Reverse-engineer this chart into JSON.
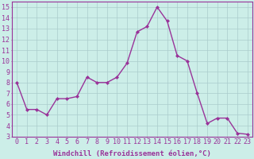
{
  "x": [
    0,
    1,
    2,
    3,
    4,
    5,
    6,
    7,
    8,
    9,
    10,
    11,
    12,
    13,
    14,
    15,
    16,
    17,
    18,
    19,
    20,
    21,
    22,
    23
  ],
  "y": [
    8,
    5.5,
    5.5,
    5.0,
    6.5,
    6.5,
    6.7,
    8.5,
    8.0,
    8.0,
    8.5,
    9.8,
    12.7,
    13.2,
    15.0,
    13.7,
    10.5,
    10.0,
    7.0,
    4.2,
    4.7,
    4.7,
    3.3,
    3.2
  ],
  "line_color": "#993399",
  "marker": "D",
  "marker_size": 2,
  "line_width": 1.0,
  "bg_color": "#cceee8",
  "grid_color": "#aacccc",
  "xlabel": "Windchill (Refroidissement éolien,°C)",
  "xlabel_color": "#993399",
  "tick_color": "#993399",
  "xlim": [
    -0.5,
    23.5
  ],
  "ylim": [
    3,
    15.5
  ],
  "yticks": [
    3,
    4,
    5,
    6,
    7,
    8,
    9,
    10,
    11,
    12,
    13,
    14,
    15
  ],
  "xticks": [
    0,
    1,
    2,
    3,
    4,
    5,
    6,
    7,
    8,
    9,
    10,
    11,
    12,
    13,
    14,
    15,
    16,
    17,
    18,
    19,
    20,
    21,
    22,
    23
  ],
  "spine_color": "#993399",
  "font_size": 6.0
}
